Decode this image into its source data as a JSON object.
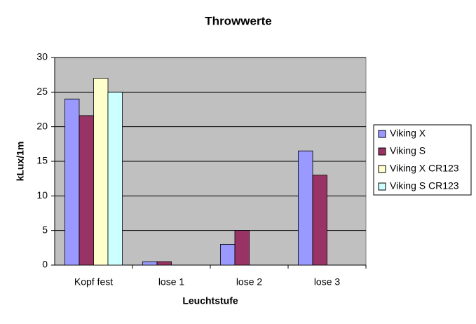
{
  "chart_data": {
    "type": "bar",
    "title": "Throwwerte",
    "x_label": "Leuchtstufe",
    "y_label": "kLux/1m",
    "categories": [
      "Kopf fest",
      "lose 1",
      "lose 2",
      "lose 3"
    ],
    "series": [
      {
        "name": "Viking X",
        "color": "#9999ff",
        "values": [
          24,
          0.5,
          3,
          16.5
        ]
      },
      {
        "name": "Viking S",
        "color": "#993366",
        "values": [
          21.6,
          0.5,
          5,
          13
        ]
      },
      {
        "name": "Viking X CR123",
        "color": "#ffffcc",
        "values": [
          27,
          null,
          null,
          null
        ]
      },
      {
        "name": "Viking S CR123",
        "color": "#ccffff",
        "values": [
          25,
          null,
          null,
          null
        ]
      }
    ],
    "ylim": [
      0,
      30
    ],
    "yticks": [
      0,
      5,
      10,
      15,
      20,
      25,
      30
    ],
    "grid": true,
    "legend": "right"
  }
}
